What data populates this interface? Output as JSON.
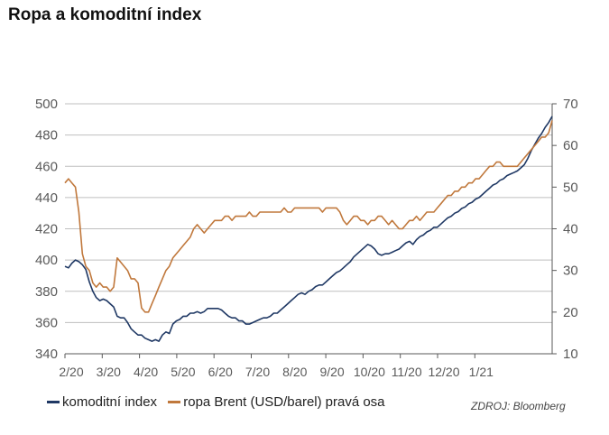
{
  "title": "Ropa a komoditní index",
  "source": "ZDROJ: Bloomberg",
  "colors": {
    "komoditni": "#1f3864",
    "brent": "#c0783c",
    "grid": "#bfbfbf",
    "axis": "#595959"
  },
  "chart_data": {
    "type": "line",
    "x_categories": [
      "2/20",
      "3/20",
      "4/20",
      "5/20",
      "6/20",
      "7/20",
      "8/20",
      "9/20",
      "10/20",
      "11/20",
      "12/20",
      "1/21"
    ],
    "x_range_months": [
      0,
      12.4
    ],
    "y_left": {
      "min": 340,
      "max": 500,
      "step": 20,
      "ticks": [
        "340",
        "360",
        "380",
        "400",
        "420",
        "440",
        "460",
        "480",
        "500"
      ]
    },
    "y_right": {
      "min": 10,
      "max": 70,
      "step": 10,
      "ticks": [
        "10",
        "20",
        "30",
        "40",
        "50",
        "60",
        "70"
      ],
      "label": "pravá osa"
    },
    "grid": true,
    "legend_position": "bottom",
    "series": [
      {
        "name": "komoditní index",
        "axis": "left",
        "points": [
          [
            0.0,
            396
          ],
          [
            0.1,
            395
          ],
          [
            0.2,
            398
          ],
          [
            0.3,
            400
          ],
          [
            0.4,
            399
          ],
          [
            0.5,
            397
          ],
          [
            0.6,
            394
          ],
          [
            0.7,
            386
          ],
          [
            0.8,
            380
          ],
          [
            0.9,
            376
          ],
          [
            1.0,
            374
          ],
          [
            1.1,
            375
          ],
          [
            1.2,
            374
          ],
          [
            1.3,
            372
          ],
          [
            1.4,
            370
          ],
          [
            1.5,
            364
          ],
          [
            1.6,
            363
          ],
          [
            1.7,
            363
          ],
          [
            1.8,
            360
          ],
          [
            1.9,
            356
          ],
          [
            2.0,
            354
          ],
          [
            2.1,
            352
          ],
          [
            2.2,
            352
          ],
          [
            2.3,
            350
          ],
          [
            2.4,
            349
          ],
          [
            2.5,
            348
          ],
          [
            2.6,
            349
          ],
          [
            2.7,
            348
          ],
          [
            2.8,
            352
          ],
          [
            2.9,
            354
          ],
          [
            3.0,
            353
          ],
          [
            3.1,
            359
          ],
          [
            3.2,
            361
          ],
          [
            3.3,
            362
          ],
          [
            3.4,
            364
          ],
          [
            3.5,
            364
          ],
          [
            3.6,
            366
          ],
          [
            3.7,
            366
          ],
          [
            3.8,
            367
          ],
          [
            3.9,
            366
          ],
          [
            4.0,
            367
          ],
          [
            4.1,
            369
          ],
          [
            4.2,
            369
          ],
          [
            4.3,
            369
          ],
          [
            4.4,
            369
          ],
          [
            4.5,
            368
          ],
          [
            4.6,
            366
          ],
          [
            4.7,
            364
          ],
          [
            4.8,
            363
          ],
          [
            4.9,
            363
          ],
          [
            5.0,
            361
          ],
          [
            5.1,
            361
          ],
          [
            5.2,
            359
          ],
          [
            5.3,
            359
          ],
          [
            5.4,
            360
          ],
          [
            5.5,
            361
          ],
          [
            5.6,
            362
          ],
          [
            5.7,
            363
          ],
          [
            5.8,
            363
          ],
          [
            5.9,
            364
          ],
          [
            6.0,
            366
          ],
          [
            6.1,
            366
          ],
          [
            6.2,
            368
          ],
          [
            6.3,
            370
          ],
          [
            6.4,
            372
          ],
          [
            6.5,
            374
          ],
          [
            6.6,
            376
          ],
          [
            6.7,
            378
          ],
          [
            6.8,
            379
          ],
          [
            6.9,
            378
          ],
          [
            7.0,
            380
          ],
          [
            7.1,
            381
          ],
          [
            7.2,
            383
          ],
          [
            7.3,
            384
          ],
          [
            7.4,
            384
          ],
          [
            7.5,
            386
          ],
          [
            7.6,
            388
          ],
          [
            7.7,
            390
          ],
          [
            7.8,
            392
          ],
          [
            7.9,
            393
          ],
          [
            8.0,
            395
          ],
          [
            8.1,
            397
          ],
          [
            8.2,
            399
          ],
          [
            8.3,
            402
          ],
          [
            8.4,
            404
          ],
          [
            8.5,
            406
          ],
          [
            8.6,
            408
          ],
          [
            8.7,
            410
          ],
          [
            8.8,
            409
          ],
          [
            8.9,
            407
          ],
          [
            9.0,
            404
          ],
          [
            9.1,
            403
          ],
          [
            9.2,
            404
          ],
          [
            9.3,
            404
          ],
          [
            9.4,
            405
          ],
          [
            9.5,
            406
          ],
          [
            9.6,
            407
          ],
          [
            9.7,
            409
          ],
          [
            9.8,
            411
          ],
          [
            9.9,
            412
          ],
          [
            10.0,
            410
          ],
          [
            10.1,
            413
          ],
          [
            10.2,
            415
          ],
          [
            10.3,
            416
          ],
          [
            10.4,
            418
          ],
          [
            10.5,
            419
          ],
          [
            10.6,
            421
          ],
          [
            10.7,
            421
          ],
          [
            10.8,
            423
          ],
          [
            10.9,
            425
          ],
          [
            11.0,
            427
          ],
          [
            11.1,
            428
          ],
          [
            11.2,
            430
          ],
          [
            11.3,
            431
          ],
          [
            11.4,
            433
          ],
          [
            11.5,
            434
          ],
          [
            11.6,
            436
          ],
          [
            11.7,
            437
          ],
          [
            11.8,
            439
          ],
          [
            11.9,
            440
          ],
          [
            12.0,
            442
          ],
          [
            12.1,
            444
          ],
          [
            12.2,
            446
          ],
          [
            12.3,
            448
          ],
          [
            12.4,
            449
          ],
          [
            12.5,
            451
          ],
          [
            12.6,
            452
          ],
          [
            12.7,
            454
          ],
          [
            12.8,
            455
          ],
          [
            12.9,
            456
          ],
          [
            13.0,
            457
          ],
          [
            13.1,
            459
          ],
          [
            13.2,
            461
          ],
          [
            13.3,
            465
          ],
          [
            13.4,
            470
          ],
          [
            13.5,
            474
          ],
          [
            13.6,
            478
          ],
          [
            13.7,
            481
          ],
          [
            13.8,
            485
          ],
          [
            13.9,
            488
          ],
          [
            14.0,
            492
          ]
        ]
      },
      {
        "name": "ropa Brent (USD/barel)",
        "axis": "right",
        "points": [
          [
            0.0,
            51
          ],
          [
            0.1,
            52
          ],
          [
            0.2,
            51
          ],
          [
            0.3,
            50
          ],
          [
            0.4,
            44
          ],
          [
            0.5,
            34
          ],
          [
            0.6,
            31
          ],
          [
            0.7,
            30
          ],
          [
            0.8,
            27
          ],
          [
            0.9,
            26
          ],
          [
            1.0,
            27
          ],
          [
            1.1,
            26
          ],
          [
            1.2,
            26
          ],
          [
            1.3,
            25
          ],
          [
            1.4,
            26
          ],
          [
            1.5,
            33
          ],
          [
            1.6,
            32
          ],
          [
            1.7,
            31
          ],
          [
            1.8,
            30
          ],
          [
            1.9,
            28
          ],
          [
            2.0,
            28
          ],
          [
            2.1,
            27
          ],
          [
            2.2,
            21
          ],
          [
            2.3,
            20
          ],
          [
            2.4,
            20
          ],
          [
            2.5,
            22
          ],
          [
            2.6,
            24
          ],
          [
            2.7,
            26
          ],
          [
            2.8,
            28
          ],
          [
            2.9,
            30
          ],
          [
            3.0,
            31
          ],
          [
            3.1,
            33
          ],
          [
            3.2,
            34
          ],
          [
            3.3,
            35
          ],
          [
            3.4,
            36
          ],
          [
            3.5,
            37
          ],
          [
            3.6,
            38
          ],
          [
            3.7,
            40
          ],
          [
            3.8,
            41
          ],
          [
            3.9,
            40
          ],
          [
            4.0,
            39
          ],
          [
            4.1,
            40
          ],
          [
            4.2,
            41
          ],
          [
            4.3,
            42
          ],
          [
            4.4,
            42
          ],
          [
            4.5,
            42
          ],
          [
            4.6,
            43
          ],
          [
            4.7,
            43
          ],
          [
            4.8,
            42
          ],
          [
            4.9,
            43
          ],
          [
            5.0,
            43
          ],
          [
            5.1,
            43
          ],
          [
            5.2,
            43
          ],
          [
            5.3,
            44
          ],
          [
            5.4,
            43
          ],
          [
            5.5,
            43
          ],
          [
            5.6,
            44
          ],
          [
            5.7,
            44
          ],
          [
            5.8,
            44
          ],
          [
            5.9,
            44
          ],
          [
            6.0,
            44
          ],
          [
            6.1,
            44
          ],
          [
            6.2,
            44
          ],
          [
            6.3,
            45
          ],
          [
            6.4,
            44
          ],
          [
            6.5,
            44
          ],
          [
            6.6,
            45
          ],
          [
            6.7,
            45
          ],
          [
            6.8,
            45
          ],
          [
            6.9,
            45
          ],
          [
            7.0,
            45
          ],
          [
            7.1,
            45
          ],
          [
            7.2,
            45
          ],
          [
            7.3,
            45
          ],
          [
            7.4,
            44
          ],
          [
            7.5,
            45
          ],
          [
            7.6,
            45
          ],
          [
            7.7,
            45
          ],
          [
            7.8,
            45
          ],
          [
            7.9,
            44
          ],
          [
            8.0,
            42
          ],
          [
            8.1,
            41
          ],
          [
            8.2,
            42
          ],
          [
            8.3,
            43
          ],
          [
            8.4,
            43
          ],
          [
            8.5,
            42
          ],
          [
            8.6,
            42
          ],
          [
            8.7,
            41
          ],
          [
            8.8,
            42
          ],
          [
            8.9,
            42
          ],
          [
            9.0,
            43
          ],
          [
            9.1,
            43
          ],
          [
            9.2,
            42
          ],
          [
            9.3,
            41
          ],
          [
            9.4,
            42
          ],
          [
            9.5,
            41
          ],
          [
            9.6,
            40
          ],
          [
            9.7,
            40
          ],
          [
            9.8,
            41
          ],
          [
            9.9,
            42
          ],
          [
            10.0,
            42
          ],
          [
            10.1,
            43
          ],
          [
            10.2,
            42
          ],
          [
            10.3,
            43
          ],
          [
            10.4,
            44
          ],
          [
            10.5,
            44
          ],
          [
            10.6,
            44
          ],
          [
            10.7,
            45
          ],
          [
            10.8,
            46
          ],
          [
            10.9,
            47
          ],
          [
            11.0,
            48
          ],
          [
            11.1,
            48
          ],
          [
            11.2,
            49
          ],
          [
            11.3,
            49
          ],
          [
            11.4,
            50
          ],
          [
            11.5,
            50
          ],
          [
            11.6,
            51
          ],
          [
            11.7,
            51
          ],
          [
            11.8,
            52
          ],
          [
            11.9,
            52
          ],
          [
            12.0,
            53
          ],
          [
            12.1,
            54
          ],
          [
            12.2,
            55
          ],
          [
            12.3,
            55
          ],
          [
            12.4,
            56
          ],
          [
            12.5,
            56
          ],
          [
            12.6,
            55
          ],
          [
            12.7,
            55
          ],
          [
            12.8,
            55
          ],
          [
            12.9,
            55
          ],
          [
            13.0,
            55
          ],
          [
            13.1,
            56
          ],
          [
            13.2,
            57
          ],
          [
            13.3,
            58
          ],
          [
            13.4,
            59
          ],
          [
            13.5,
            60
          ],
          [
            13.6,
            61
          ],
          [
            13.7,
            62
          ],
          [
            13.8,
            62
          ],
          [
            13.9,
            63
          ],
          [
            14.0,
            66
          ]
        ]
      }
    ]
  }
}
